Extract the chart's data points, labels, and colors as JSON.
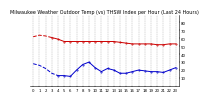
{
  "title": "Milwaukee Weather Outdoor Temp (vs) THSW Index per Hour (Last 24 Hours)",
  "bg_color": "#ffffff",
  "grid_color": "#aaaaaa",
  "red_x": [
    0,
    1,
    2,
    3,
    4,
    5,
    6,
    7,
    8,
    9,
    10,
    11,
    12,
    13,
    14,
    15,
    16,
    17,
    18,
    19,
    20,
    21,
    22,
    23
  ],
  "red_y": [
    62,
    64,
    63,
    61,
    59,
    56,
    56,
    56,
    56,
    56,
    56,
    56,
    56,
    56,
    55,
    54,
    53,
    53,
    53,
    53,
    52,
    52,
    53,
    53
  ],
  "red_dash_end": 3,
  "blue_x": [
    0,
    1,
    2,
    3,
    4,
    5,
    6,
    7,
    8,
    9,
    10,
    11,
    12,
    13,
    14,
    15,
    16,
    17,
    18,
    19,
    20,
    21,
    22,
    23
  ],
  "blue_y": [
    28,
    26,
    22,
    16,
    13,
    13,
    12,
    20,
    27,
    30,
    23,
    18,
    22,
    20,
    16,
    16,
    18,
    20,
    19,
    18,
    18,
    17,
    20,
    23
  ],
  "blue_dash_end": 4,
  "ylim_min": 0,
  "ylim_max": 90,
  "xlim_min": -0.5,
  "xlim_max": 23.5,
  "yticks": [
    10,
    20,
    30,
    40,
    50,
    60,
    70,
    80
  ],
  "ytick_labels": [
    "10",
    "20",
    "30",
    "40",
    "50",
    "60",
    "70",
    "80"
  ],
  "xtick_positions": [
    0,
    1,
    2,
    3,
    4,
    5,
    6,
    7,
    8,
    9,
    10,
    11,
    12,
    13,
    14,
    15,
    16,
    17,
    18,
    19,
    20,
    21,
    22,
    23
  ],
  "xtick_labels": [
    "0",
    "1",
    "2",
    "3",
    "4",
    "5",
    "6",
    "7",
    "8",
    "9",
    "10",
    "11",
    "12",
    "13",
    "14",
    "15",
    "16",
    "17",
    "18",
    "19",
    "20",
    "21",
    "22",
    "23"
  ],
  "title_fontsize": 3.5,
  "tick_fontsize": 2.8,
  "line_width": 0.7,
  "marker_size": 0.8,
  "red_color": "#cc0000",
  "blue_color": "#0000cc",
  "grid_lw": 0.3,
  "grid_ls": "--",
  "grid_color_val": "#888888"
}
